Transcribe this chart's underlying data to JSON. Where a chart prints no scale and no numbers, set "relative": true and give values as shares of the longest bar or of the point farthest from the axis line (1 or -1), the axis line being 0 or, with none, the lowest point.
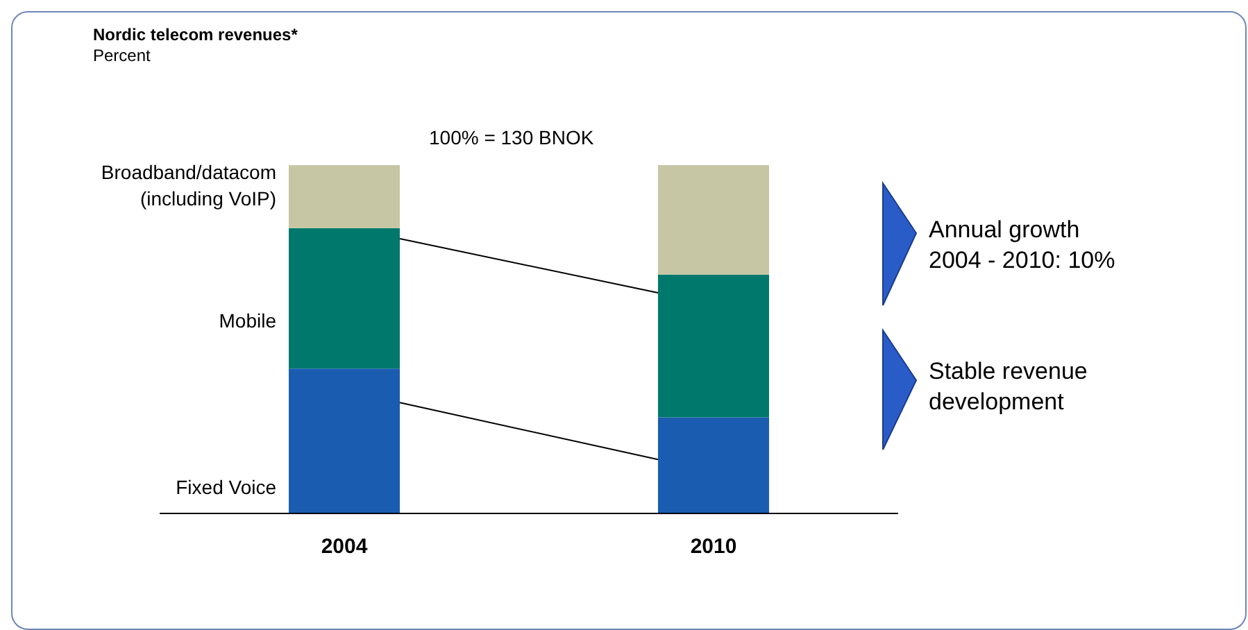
{
  "chart_data": {
    "type": "bar",
    "title": "Nordic telecom revenues*",
    "subtitle": "Percent",
    "categories": [
      "2004",
      "2010"
    ],
    "stacked": true,
    "relative": true,
    "series": [
      {
        "name": "Fixed Voice",
        "color": "#1a5cb0",
        "values": [
          0.416,
          0.276
        ]
      },
      {
        "name": "Mobile",
        "color": "#00786c",
        "values": [
          0.403,
          0.41
        ]
      },
      {
        "name": "Broadband/datacom\n(including VoIP)",
        "color": "#c6c6a4",
        "values": [
          0.181,
          0.314
        ]
      }
    ],
    "annotations": [
      "100% = 130 BNOK",
      "Annual growth\n2004 - 2010: 10%",
      "Stable revenue\ndevelopment"
    ]
  }
}
